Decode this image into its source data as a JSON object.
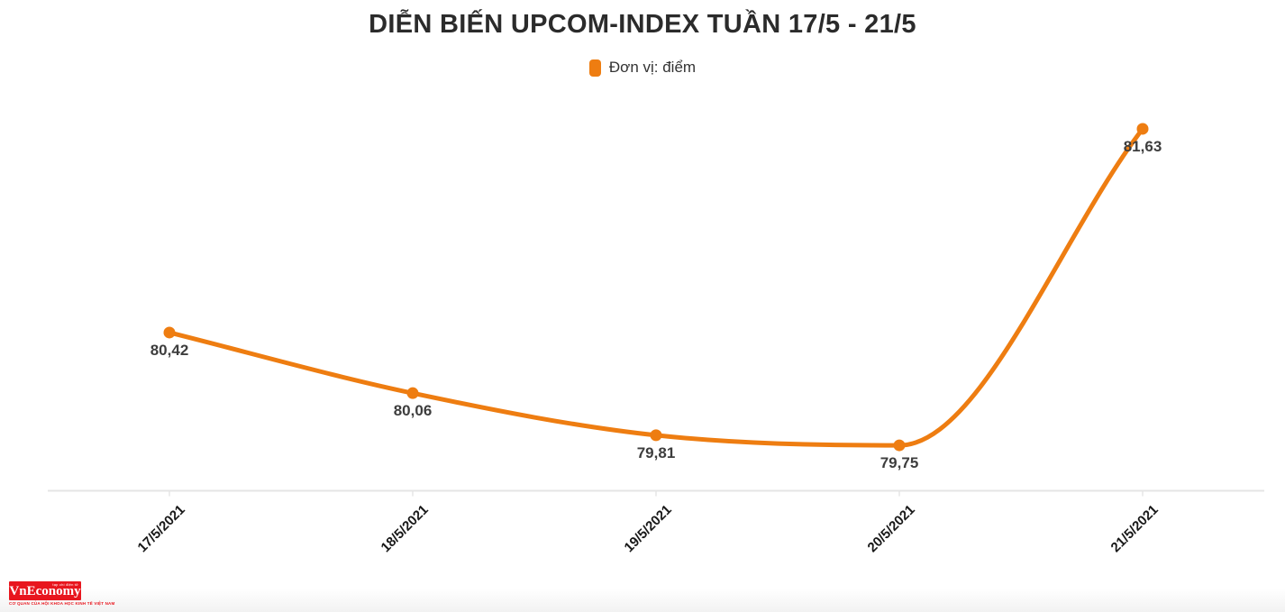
{
  "header": {
    "title": "DIỄN BIẾN UPCOM-INDEX TUẦN 17/5 - 21/5"
  },
  "legend": {
    "label": "Đơn vị: điểm"
  },
  "colors": {
    "accent_orange": "#EE7D11",
    "axis_gray": "#E5E5E5",
    "title_dark": "#2B2B2B",
    "data_label_dark": "#3D3D3D",
    "tick_label_black": "#181818",
    "logo_red": "#E8161E"
  },
  "chart_data": {
    "type": "line",
    "title": "DIỄN BIẾN UPCOM-INDEX TUẦN 17/5 - 21/5",
    "legend": "Đơn vị: điểm",
    "legend_position": "top-center",
    "categories": [
      "17/5/2021",
      "18/5/2021",
      "19/5/2021",
      "20/5/2021",
      "21/5/2021"
    ],
    "values": [
      80.42,
      80.06,
      79.81,
      79.75,
      81.63
    ],
    "point_labels": [
      "80,42",
      "80,06",
      "79,81",
      "79,75",
      "81,63"
    ],
    "xlabel": "",
    "ylabel": "",
    "ylim": [
      79.48,
      81.86
    ],
    "grid": false,
    "smooth": true,
    "marker": "circle",
    "line_color": "#EE7D11"
  },
  "footer": {
    "logo_text": "VnEconomy",
    "logo_top_tagline": "tạp chí điện tử",
    "logo_bottom_tagline": "CƠ QUAN CỦA HỘI KHOA HỌC KINH TẾ VIỆT NAM"
  }
}
